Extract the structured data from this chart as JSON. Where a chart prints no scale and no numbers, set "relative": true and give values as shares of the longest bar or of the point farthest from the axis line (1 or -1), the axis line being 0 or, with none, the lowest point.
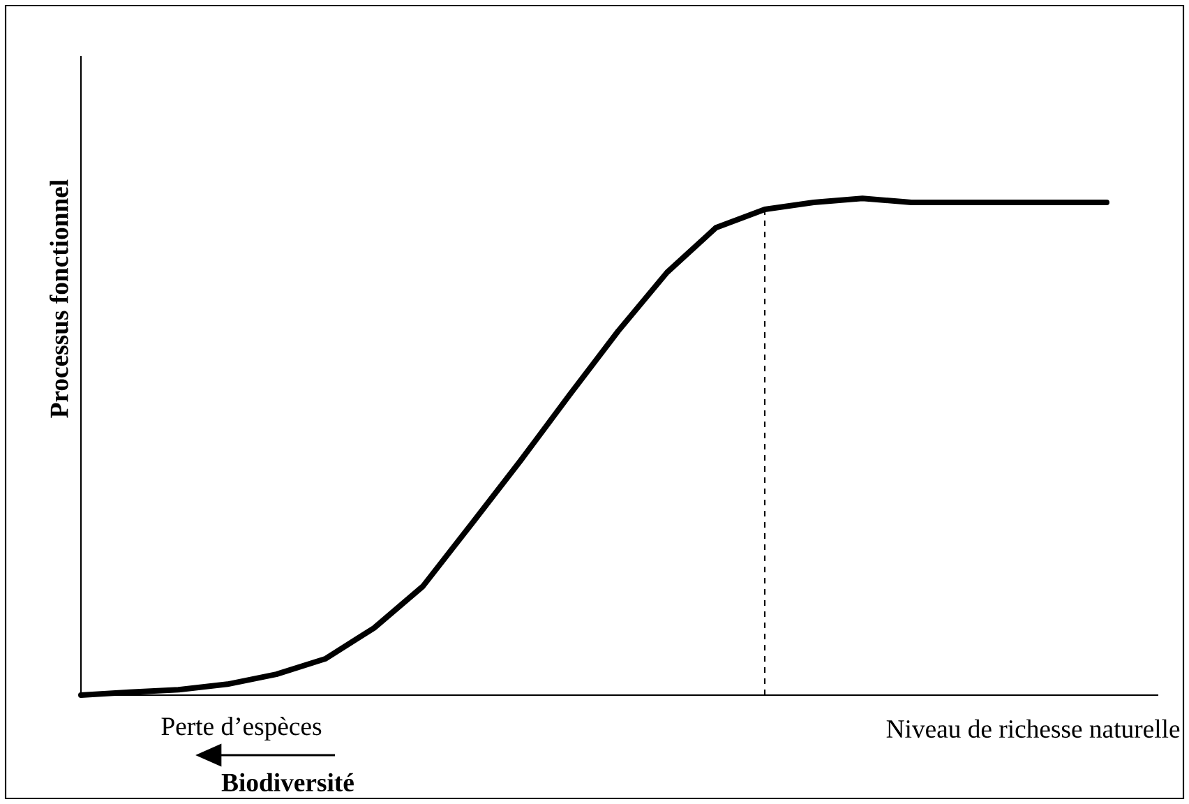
{
  "chart_data": {
    "type": "line",
    "relative": true,
    "xlabel": "Biodiversité",
    "ylabel": "Processus fonctionnel",
    "categories": [
      null,
      null,
      null,
      null,
      null,
      null,
      null,
      null,
      null,
      null,
      null,
      null,
      null,
      null,
      null,
      null,
      null,
      null,
      null,
      null,
      null,
      null
    ],
    "series": [
      {
        "color": "#000000",
        "values": [
          0,
          0.006,
          0.011,
          0.022,
          0.042,
          0.073,
          0.135,
          0.219,
          0.345,
          0.472,
          0.604,
          0.733,
          0.851,
          0.941,
          0.978,
          0.992,
          1,
          0.992,
          0.992,
          0.992,
          0.992,
          0.992
        ]
      }
    ],
    "annotations": [
      "Perte d’espèces",
      "Niveau de richesse naturelle"
    ]
  }
}
